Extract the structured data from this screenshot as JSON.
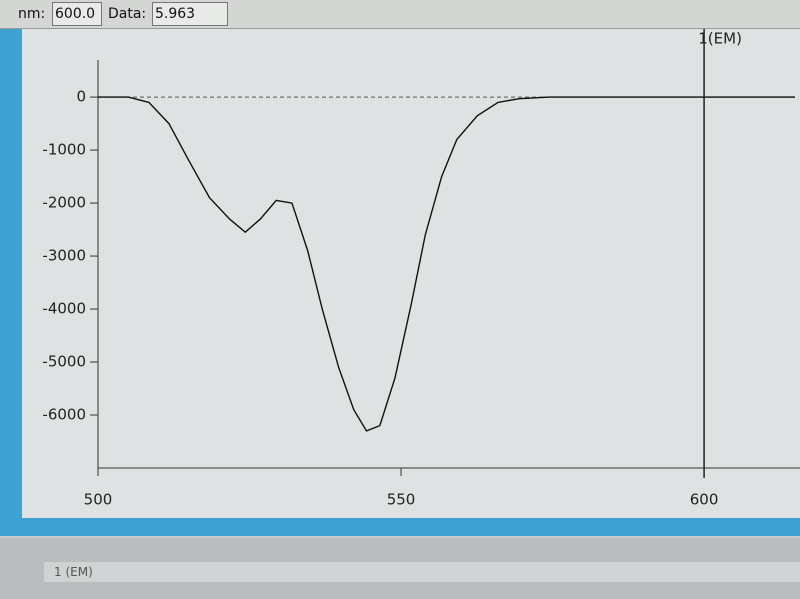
{
  "toolbar": {
    "nm_label": "nm:",
    "nm_value": "600.0",
    "data_label": "Data:",
    "data_value": "5.963"
  },
  "chart_data": {
    "type": "line",
    "x": [
      500,
      505,
      508.4,
      511.7,
      515,
      518.4,
      521.7,
      524.3,
      526.8,
      529.4,
      532,
      534.6,
      537,
      539.7,
      542.2,
      544.3,
      546.5,
      549,
      551.7,
      554,
      556.7,
      559.2,
      562.6,
      566,
      569.5,
      574.5,
      590,
      615
    ],
    "series": [
      {
        "name": "1(EM)",
        "color": "#111111",
        "values": [
          0,
          0,
          -100,
          -500,
          -1200,
          -1900,
          -2300,
          -2550,
          -2300,
          -1950,
          -2000,
          -2900,
          -4000,
          -5100,
          -5900,
          -6300,
          -6200,
          -5300,
          -3900,
          -2600,
          -1500,
          -800,
          -350,
          -100,
          -30,
          0,
          0,
          0
        ]
      }
    ],
    "xlim": [
      500,
      615
    ],
    "xticks": [
      500,
      550,
      600
    ],
    "ylim": [
      -7000,
      700
    ],
    "yticks": [
      0,
      -1000,
      -2000,
      -3000,
      -4000,
      -5000,
      -6000
    ]
  },
  "bottom_panel": {
    "title": "1 (EM)"
  }
}
